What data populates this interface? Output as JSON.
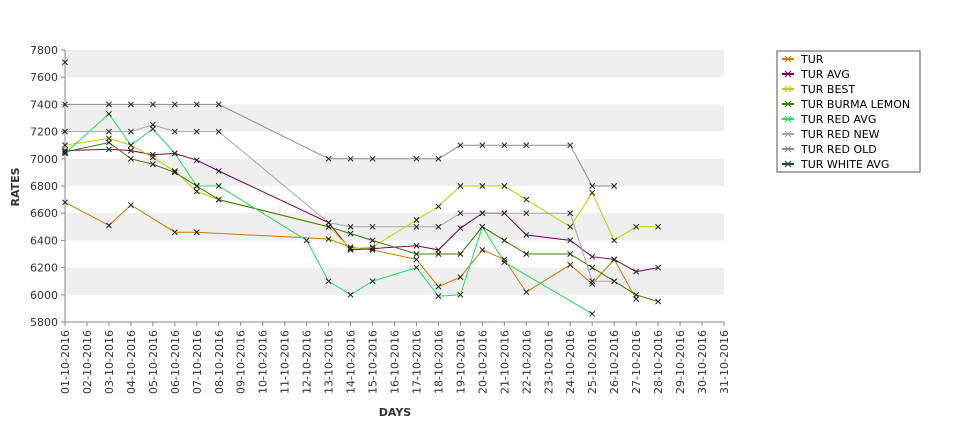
{
  "chart_data": {
    "type": "line",
    "xlabel": "DAYS",
    "ylabel": "RATES",
    "ylim": [
      5800,
      7800
    ],
    "yticks": [
      5800,
      6000,
      6200,
      6400,
      6600,
      6800,
      7000,
      7200,
      7400,
      7600,
      7800
    ],
    "grid": "horizontal bands",
    "legend_position": "right",
    "x_labels": [
      "01-10-2016",
      "02-10-2016",
      "03-10-2016",
      "04-10-2016",
      "05-10-2016",
      "06-10-2016",
      "07-10-2016",
      "08-10-2016",
      "09-10-2016",
      "10-10-2016",
      "11-10-2016",
      "12-10-2016",
      "13-10-2016",
      "14-10-2016",
      "15-10-2016",
      "16-10-2016",
      "17-10-2016",
      "18-10-2016",
      "19-10-2016",
      "20-10-2016",
      "21-10-2016",
      "22-10-2016",
      "23-10-2016",
      "24-10-2016",
      "25-10-2016",
      "26-10-2016",
      "27-10-2016",
      "28-10-2016",
      "29-10-2016",
      "30-10-2016",
      "31-10-2016"
    ],
    "series": [
      {
        "name": "TUR",
        "color": "#cc7a00",
        "points": [
          [
            1,
            6680
          ],
          [
            3,
            6510
          ],
          [
            4,
            6660
          ],
          [
            6,
            6460
          ],
          [
            7,
            6460
          ],
          [
            13,
            6410
          ],
          [
            14,
            6350
          ],
          [
            15,
            6330
          ],
          [
            17,
            6260
          ],
          [
            18,
            6060
          ],
          [
            19,
            6130
          ],
          [
            20,
            6330
          ],
          [
            21,
            6260
          ],
          [
            22,
            6020
          ],
          [
            24,
            6220
          ],
          [
            25,
            6080
          ],
          [
            26,
            6260
          ],
          [
            27,
            5970
          ]
        ]
      },
      {
        "name": "TUR AVG",
        "color": "#7a0060",
        "points": [
          [
            1,
            7060
          ],
          [
            3,
            7070
          ],
          [
            4,
            7060
          ],
          [
            5,
            7030
          ],
          [
            6,
            7040
          ],
          [
            7,
            6990
          ],
          [
            8,
            6910
          ],
          [
            13,
            6530
          ],
          [
            14,
            6330
          ],
          [
            15,
            6340
          ],
          [
            17,
            6360
          ],
          [
            18,
            6330
          ],
          [
            19,
            6490
          ],
          [
            20,
            6600
          ],
          [
            21,
            6600
          ],
          [
            22,
            6440
          ],
          [
            24,
            6400
          ],
          [
            25,
            6280
          ],
          [
            26,
            6260
          ],
          [
            27,
            6170
          ],
          [
            28,
            6200
          ]
        ]
      },
      {
        "name": "TUR BEST",
        "color": "#b5d600",
        "points": [
          [
            1,
            7100
          ],
          [
            3,
            7150
          ],
          [
            4,
            7100
          ],
          [
            5,
            7010
          ],
          [
            6,
            6910
          ],
          [
            7,
            6760
          ],
          [
            8,
            6700
          ],
          [
            13,
            6500
          ],
          [
            14,
            6340
          ],
          [
            15,
            6350
          ],
          [
            17,
            6550
          ],
          [
            18,
            6650
          ],
          [
            19,
            6800
          ],
          [
            20,
            6800
          ],
          [
            21,
            6800
          ],
          [
            22,
            6700
          ],
          [
            24,
            6500
          ],
          [
            25,
            6750
          ],
          [
            26,
            6400
          ],
          [
            27,
            6500
          ],
          [
            28,
            6500
          ]
        ]
      },
      {
        "name": "TUR BURMA LEMON",
        "color": "#3a7a00",
        "points": [
          [
            1,
            7050
          ],
          [
            3,
            7120
          ],
          [
            4,
            7000
          ],
          [
            5,
            6960
          ],
          [
            6,
            6900
          ],
          [
            7,
            6800
          ],
          [
            8,
            6700
          ],
          [
            13,
            6500
          ],
          [
            14,
            6450
          ],
          [
            15,
            6400
          ],
          [
            17,
            6300
          ],
          [
            18,
            6300
          ],
          [
            19,
            6300
          ],
          [
            20,
            6500
          ],
          [
            21,
            6400
          ],
          [
            22,
            6300
          ],
          [
            24,
            6300
          ],
          [
            25,
            6200
          ],
          [
            26,
            6100
          ],
          [
            27,
            6000
          ],
          [
            28,
            5950
          ]
        ]
      },
      {
        "name": "TUR RED AVG",
        "color": "#22e05a",
        "points": [
          [
            1,
            7040
          ],
          [
            3,
            7330
          ],
          [
            4,
            7100
          ],
          [
            5,
            7220
          ],
          [
            6,
            7040
          ],
          [
            7,
            6800
          ],
          [
            8,
            6800
          ],
          [
            12,
            6400
          ],
          [
            13,
            6100
          ],
          [
            14,
            6000
          ],
          [
            15,
            6100
          ],
          [
            17,
            6200
          ],
          [
            18,
            5990
          ],
          [
            19,
            6000
          ],
          [
            20,
            6500
          ],
          [
            21,
            6240
          ],
          [
            25,
            5860
          ]
        ]
      },
      {
        "name": "TUR RED NEW",
        "color": "#a6a6a6",
        "points": [
          [
            1,
            7200
          ],
          [
            3,
            7200
          ],
          [
            4,
            7200
          ],
          [
            5,
            7250
          ],
          [
            6,
            7200
          ],
          [
            7,
            7200
          ],
          [
            8,
            7200
          ],
          [
            13,
            6530
          ],
          [
            14,
            6500
          ],
          [
            15,
            6500
          ],
          [
            17,
            6500
          ],
          [
            18,
            6500
          ],
          [
            19,
            6600
          ],
          [
            20,
            6600
          ],
          [
            21,
            6600
          ],
          [
            22,
            6600
          ],
          [
            24,
            6600
          ],
          [
            25,
            6100
          ],
          [
            26,
            6100
          ]
        ]
      },
      {
        "name": "TUR RED OLD",
        "color": "#8c8c8c",
        "points": [
          [
            1,
            7710
          ],
          [
            1,
            7400
          ],
          [
            3,
            7400
          ],
          [
            4,
            7400
          ],
          [
            5,
            7400
          ],
          [
            6,
            7400
          ],
          [
            7,
            7400
          ],
          [
            8,
            7400
          ],
          [
            13,
            7000
          ],
          [
            14,
            7000
          ],
          [
            15,
            7000
          ],
          [
            17,
            7000
          ],
          [
            18,
            7000
          ],
          [
            19,
            7100
          ],
          [
            20,
            7100
          ],
          [
            21,
            7100
          ],
          [
            22,
            7100
          ],
          [
            24,
            7100
          ],
          [
            25,
            6800
          ],
          [
            26,
            6800
          ]
        ]
      },
      {
        "name": "TUR WHITE AVG",
        "color": "#1a4a3a",
        "points": []
      }
    ]
  }
}
